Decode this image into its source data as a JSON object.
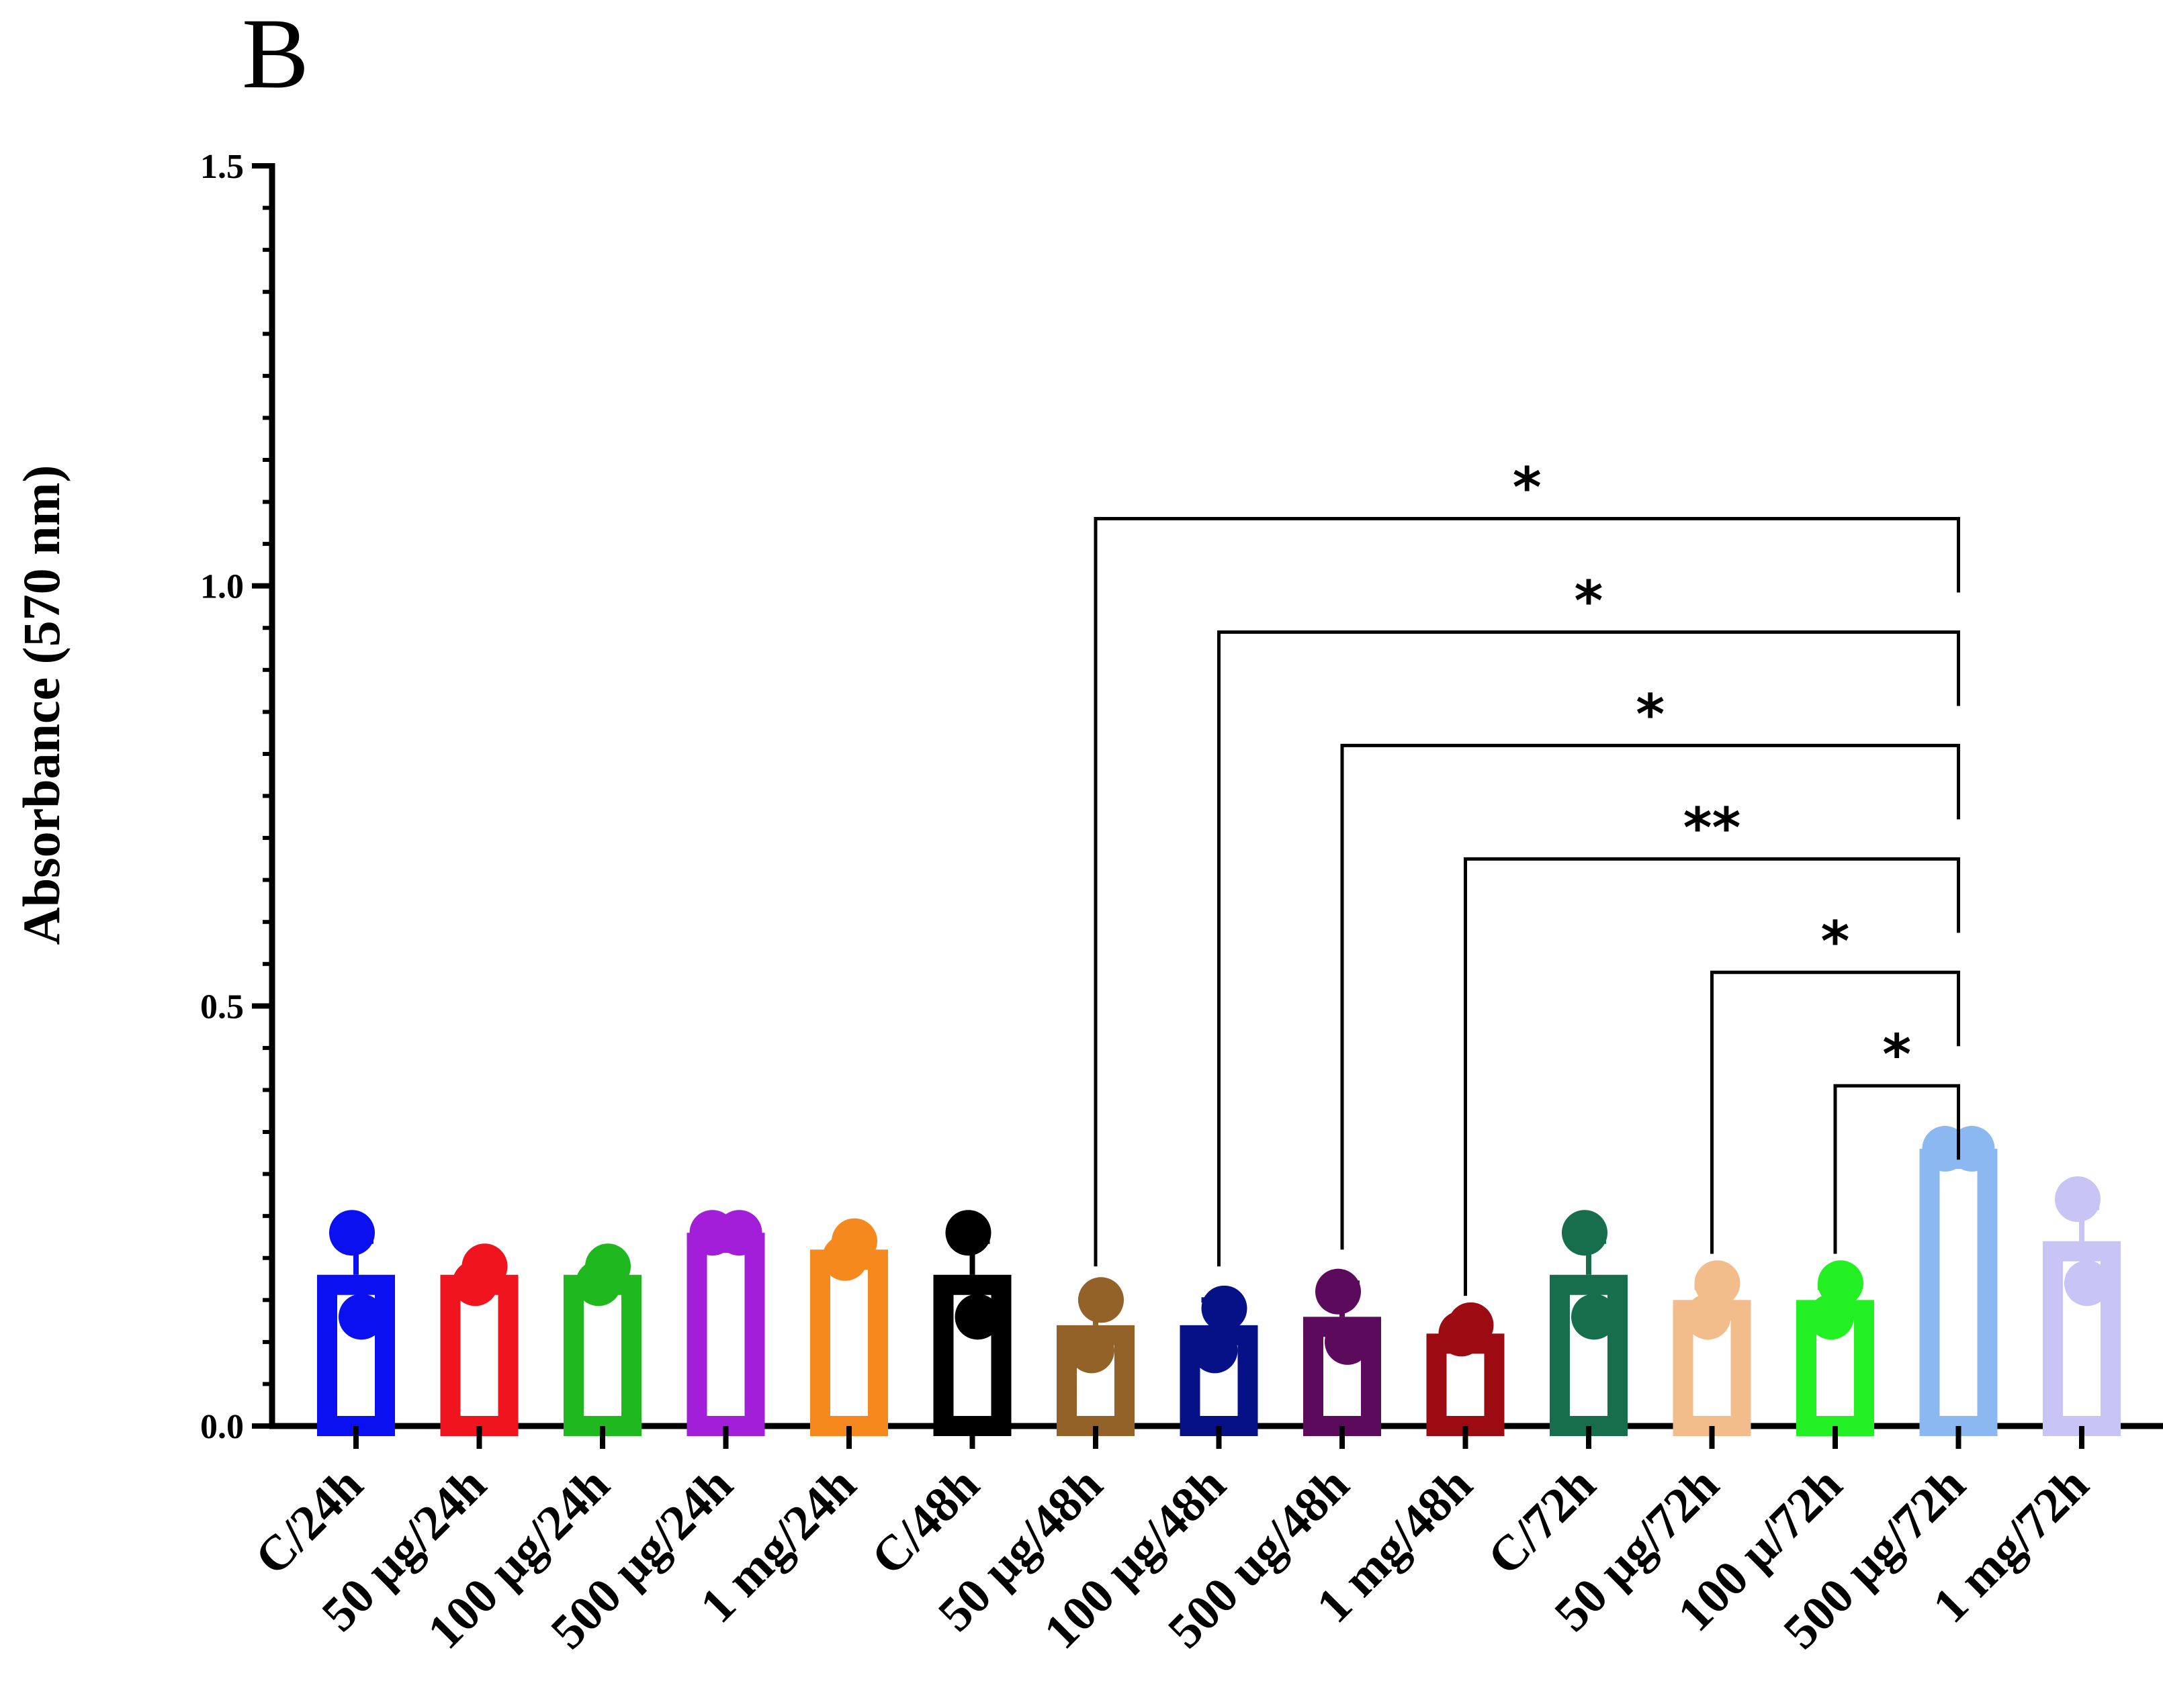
{
  "panel_label": "B",
  "chart_data": {
    "type": "bar",
    "ylabel": "Absorbance (570 nm)",
    "xlabel": "",
    "ylim": [
      0,
      1.5
    ],
    "yticks": [
      "0.0",
      "0.5",
      "1.0",
      "1.5"
    ],
    "ytick_values": [
      0,
      0.5,
      1.0,
      1.5
    ],
    "categories": [
      "C/24h",
      "50 µg/24h",
      "100 µg/24h",
      "500 µg/24h",
      "1 mg/24h",
      "C/48h",
      "50 µg/48h",
      "100 µg/48h",
      "500 ug/48h",
      "1 mg/48h",
      "C/72h",
      "50 µg/72h",
      "100 µ/72h",
      "500 µg/72h",
      "1 mg/72h"
    ],
    "values": [
      0.18,
      0.18,
      0.18,
      0.23,
      0.21,
      0.18,
      0.12,
      0.12,
      0.13,
      0.11,
      0.18,
      0.15,
      0.15,
      0.33,
      0.22
    ],
    "sem": [
      0.04,
      0.01,
      0.01,
      0.005,
      0.01,
      0.04,
      0.03,
      0.03,
      0.04,
      0.005,
      0.04,
      0.015,
      0.015,
      0.005,
      0.04
    ],
    "points": [
      [
        0.23,
        0.13
      ],
      [
        0.17,
        0.19
      ],
      [
        0.17,
        0.19
      ],
      [
        0.23,
        0.23
      ],
      [
        0.2,
        0.22
      ],
      [
        0.23,
        0.13
      ],
      [
        0.09,
        0.15
      ],
      [
        0.09,
        0.14
      ],
      [
        0.16,
        0.1
      ],
      [
        0.11,
        0.12
      ],
      [
        0.23,
        0.13
      ],
      [
        0.13,
        0.17
      ],
      [
        0.13,
        0.17
      ],
      [
        0.33,
        0.33
      ],
      [
        0.27,
        0.17
      ]
    ],
    "colors": [
      "#0a10f0",
      "#f0141e",
      "#1fb81f",
      "#a21ed8",
      "#f5891e",
      "#000000",
      "#936228",
      "#061188",
      "#5c0a5c",
      "#9c0a12",
      "#166e4c",
      "#f2bd8a",
      "#22f022",
      "#8cb8f2",
      "#c8c4f6"
    ],
    "comparisons": [
      {
        "from": 6,
        "to": 13,
        "label": "*",
        "y": 1.08
      },
      {
        "from": 7,
        "to": 13,
        "label": "*",
        "y": 0.945
      },
      {
        "from": 8,
        "to": 13,
        "label": "*",
        "y": 0.81
      },
      {
        "from": 9,
        "to": 13,
        "label": "**",
        "y": 0.675
      },
      {
        "from": 11,
        "to": 13,
        "label": "*",
        "y": 0.54
      },
      {
        "from": 12,
        "to": 13,
        "label": "*",
        "y": 0.405
      }
    ]
  }
}
